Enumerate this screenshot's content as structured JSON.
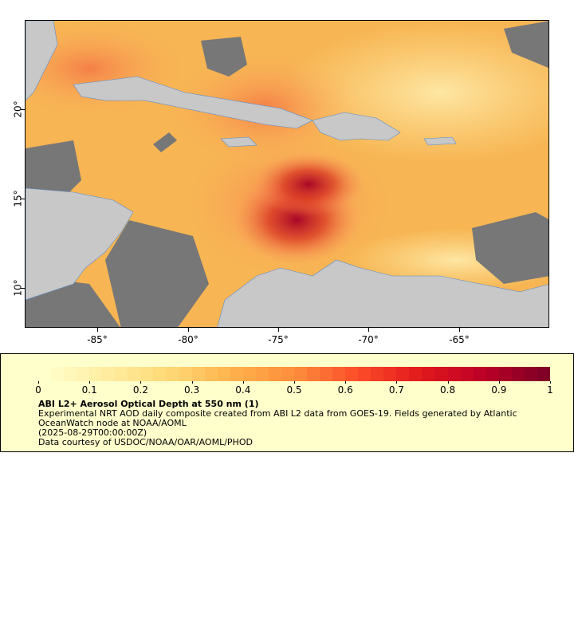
{
  "map": {
    "x_ticks": [
      "-85°",
      "-80°",
      "-75°",
      "-70°",
      "-65°"
    ],
    "y_ticks": [
      "20°",
      "15°",
      "10°"
    ],
    "lon_range": [
      -89,
      -60
    ],
    "lat_range": [
      8,
      25
    ]
  },
  "legend": {
    "colorbar_ticks": [
      "0",
      "0.1",
      "0.2",
      "0.3",
      "0.4",
      "0.5",
      "0.6",
      "0.7",
      "0.8",
      "0.9",
      "1"
    ],
    "colors": [
      "#ffffcc",
      "#ffeda0",
      "#fed976",
      "#feb24c",
      "#fd8d3c",
      "#fc4e2a",
      "#e31a1c",
      "#bd0026",
      "#800026"
    ],
    "title": "ABI L2+ Aerosol Optical Depth at 550 nm (1)",
    "line1": "Experimental NRT AOD daily composite created from ABI L2 data from GOES-19. Fields generated by Atlantic OceanWatch node at NOAA/AOML",
    "line2": "(2025-08-29T00:00:00Z)",
    "line3": "Data courtesy of USDOC/NOAA/OAR/AOML/PHOD"
  }
}
